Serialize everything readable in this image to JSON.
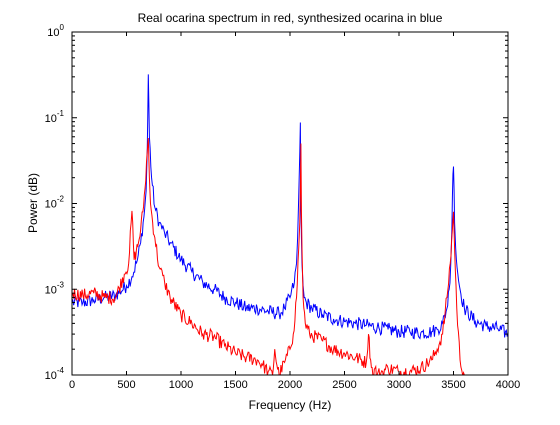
{
  "chart_data": {
    "type": "line",
    "title": "Real ocarina spectrum in red, synthesized ocarina in blue",
    "xlabel": "Frequency (Hz)",
    "ylabel": "Power (dB)",
    "xlim": [
      0,
      4000
    ],
    "ylim": [
      0.0001,
      1
    ],
    "yscale": "log",
    "grid": false,
    "legend": "none",
    "x_ticks": [
      0,
      500,
      1000,
      1500,
      2000,
      2500,
      3000,
      3500,
      4000
    ],
    "x_tick_labels": [
      "0",
      "500",
      "1000",
      "1500",
      "2000",
      "2500",
      "3000",
      "3500",
      "4000"
    ],
    "y_ticks": [
      0.0001,
      0.001,
      0.01,
      0.1,
      1
    ],
    "y_tick_labels": [
      {
        "base": "10",
        "exp": "-4"
      },
      {
        "base": "10",
        "exp": "-3"
      },
      {
        "base": "10",
        "exp": "-2"
      },
      {
        "base": "10",
        "exp": "-1"
      },
      {
        "base": "10",
        "exp": "0"
      }
    ],
    "series": [
      {
        "color": "#0000ff",
        "x": [
          0,
          100,
          200,
          300,
          400,
          500,
          550,
          600,
          630,
          660,
          680,
          690,
          695,
          700,
          705,
          710,
          730,
          760,
          800,
          850,
          900,
          1000,
          1100,
          1200,
          1300,
          1400,
          1500,
          1600,
          1700,
          1800,
          1900,
          1950,
          2000,
          2040,
          2060,
          2070,
          2080,
          2090,
          2095,
          2100,
          2105,
          2110,
          2120,
          2130,
          2150,
          2200,
          2300,
          2400,
          2500,
          2600,
          2700,
          2800,
          2900,
          3000,
          3100,
          3200,
          3300,
          3350,
          3400,
          3440,
          3460,
          3475,
          3485,
          3490,
          3495,
          3500,
          3505,
          3510,
          3520,
          3540,
          3560,
          3600,
          3700,
          3800,
          3900,
          4000
        ],
        "y": [
          0.0007,
          0.0007,
          0.00075,
          0.0008,
          0.00085,
          0.0011,
          0.0014,
          0.0022,
          0.0035,
          0.007,
          0.014,
          0.04,
          0.1,
          0.32,
          0.15,
          0.06,
          0.02,
          0.009,
          0.006,
          0.0045,
          0.0035,
          0.0022,
          0.0016,
          0.0012,
          0.001,
          0.0008,
          0.0007,
          0.0006,
          0.0006,
          0.00055,
          0.00052,
          0.0006,
          0.0008,
          0.0012,
          0.002,
          0.004,
          0.012,
          0.04,
          0.088,
          0.01,
          0.004,
          0.002,
          0.0011,
          0.0008,
          0.0007,
          0.0006,
          0.0005,
          0.00045,
          0.00042,
          0.0004,
          0.00038,
          0.00036,
          0.00034,
          0.00032,
          0.00032,
          0.00031,
          0.00032,
          0.00034,
          0.0004,
          0.0006,
          0.001,
          0.002,
          0.005,
          0.012,
          0.022,
          0.027,
          0.015,
          0.006,
          0.003,
          0.0015,
          0.001,
          0.0006,
          0.00042,
          0.00037,
          0.00035,
          0.0003
        ]
      },
      {
        "color": "#ff0000",
        "x": [
          0,
          100,
          200,
          300,
          400,
          480,
          520,
          550,
          570,
          590,
          610,
          630,
          650,
          670,
          690,
          700,
          710,
          720,
          740,
          760,
          800,
          850,
          900,
          1000,
          1100,
          1200,
          1300,
          1400,
          1500,
          1600,
          1700,
          1750,
          1800,
          1840,
          1860,
          1880,
          1900,
          1950,
          2000,
          2030,
          2060,
          2080,
          2090,
          2095,
          2100,
          2105,
          2110,
          2120,
          2140,
          2180,
          2300,
          2400,
          2500,
          2600,
          2700,
          2720,
          2740,
          2760,
          2780,
          2800,
          2850,
          2900,
          3000,
          3100,
          3200,
          3300,
          3350,
          3400,
          3440,
          3470,
          3490,
          3500,
          3510,
          3530,
          3560,
          3600
        ],
        "y": [
          0.0009,
          0.00085,
          0.0009,
          0.0008,
          0.0008,
          0.0015,
          0.002,
          0.0082,
          0.0022,
          0.0028,
          0.0035,
          0.005,
          0.008,
          0.015,
          0.04,
          0.058,
          0.02,
          0.01,
          0.006,
          0.004,
          0.0018,
          0.0012,
          0.0008,
          0.0005,
          0.0004,
          0.0003,
          0.00028,
          0.00022,
          0.00018,
          0.00016,
          0.00015,
          0.00013,
          0.00011,
          0.0001,
          0.0002,
          0.00013,
          0.0001,
          0.00014,
          0.0002,
          0.0003,
          0.0008,
          0.003,
          0.006,
          0.015,
          0.05,
          0.008,
          0.003,
          0.0008,
          0.0004,
          0.0003,
          0.00025,
          0.0002,
          0.00018,
          0.00016,
          0.00014,
          0.0003,
          0.00015,
          0.0001,
          0.00012,
          0.0001,
          0.00011,
          0.00012,
          0.00011,
          0.00011,
          0.00012,
          0.00015,
          0.0002,
          0.0003,
          0.0008,
          0.002,
          0.005,
          0.008,
          0.003,
          0.0006,
          0.00015,
          0.0001
        ]
      }
    ]
  }
}
